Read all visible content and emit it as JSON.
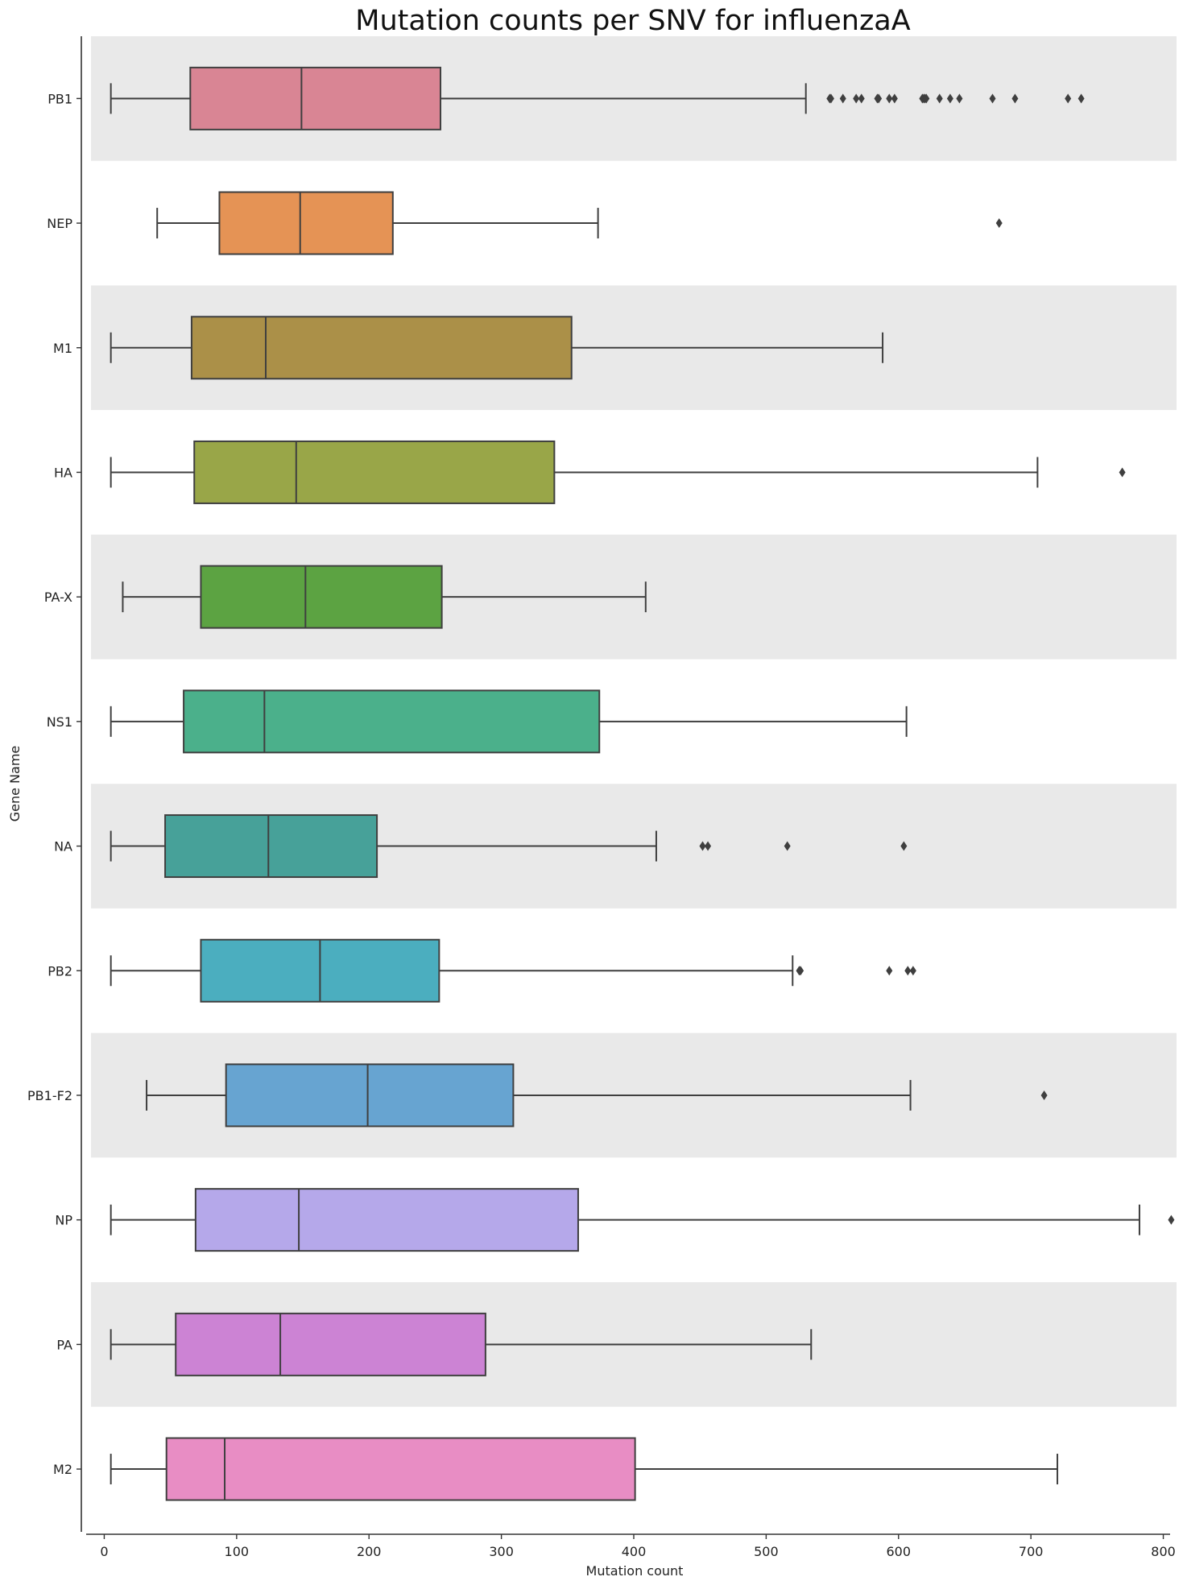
{
  "chart_data": {
    "type": "box",
    "orientation": "horizontal",
    "title": "Mutation counts per SNV for influenzaA",
    "xlabel": "Mutation count",
    "ylabel": "Gene Name",
    "xlim": [
      -10,
      810
    ],
    "xticks": [
      0,
      100,
      200,
      300,
      400,
      500,
      600,
      700,
      800
    ],
    "banding": "alternating grey row background",
    "grid": false,
    "categories": [
      {
        "name": "PB1",
        "color": "#d98594",
        "whisker_low": 5,
        "q1": 65,
        "median": 149,
        "q3": 254,
        "whisker_high": 530,
        "outliers": [
          548,
          549,
          558,
          568,
          572,
          584,
          585,
          593,
          597,
          618,
          619,
          620,
          621,
          631,
          639,
          646,
          671,
          688,
          728,
          738
        ]
      },
      {
        "name": "NEP",
        "color": "#e59355",
        "whisker_low": 40,
        "q1": 87,
        "median": 148,
        "q3": 218,
        "whisker_high": 373,
        "outliers": [
          676
        ]
      },
      {
        "name": "M1",
        "color": "#ab9048",
        "whisker_low": 5,
        "q1": 66,
        "median": 122,
        "q3": 353,
        "whisker_high": 588,
        "outliers": []
      },
      {
        "name": "HA",
        "color": "#99a648",
        "whisker_low": 5,
        "q1": 68,
        "median": 145,
        "q3": 340,
        "whisker_high": 705,
        "outliers": [
          769
        ]
      },
      {
        "name": "PA-X",
        "color": "#5ca342",
        "whisker_low": 14,
        "q1": 73,
        "median": 152,
        "q3": 255,
        "whisker_high": 409,
        "outliers": []
      },
      {
        "name": "NS1",
        "color": "#4bb08b",
        "whisker_low": 5,
        "q1": 60,
        "median": 121,
        "q3": 374,
        "whisker_high": 606,
        "outliers": []
      },
      {
        "name": "NA",
        "color": "#47a199",
        "whisker_low": 5,
        "q1": 46,
        "median": 124,
        "q3": 206,
        "whisker_high": 417,
        "outliers": [
          452,
          456,
          516,
          604
        ]
      },
      {
        "name": "PB2",
        "color": "#4baebf",
        "whisker_low": 5,
        "q1": 73,
        "median": 163,
        "q3": 253,
        "whisker_high": 520,
        "outliers": [
          525,
          526,
          593,
          607,
          611
        ]
      },
      {
        "name": "PB1-F2",
        "color": "#67a4d1",
        "whisker_low": 32,
        "q1": 92,
        "median": 199,
        "q3": 309,
        "whisker_high": 609,
        "outliers": [
          710
        ]
      },
      {
        "name": "NP",
        "color": "#b5a8ea",
        "whisker_low": 5,
        "q1": 69,
        "median": 147,
        "q3": 358,
        "whisker_high": 782,
        "outliers": [
          806
        ]
      },
      {
        "name": "PA",
        "color": "#cc83d4",
        "whisker_low": 5,
        "q1": 54,
        "median": 133,
        "q3": 288,
        "whisker_high": 534,
        "outliers": []
      },
      {
        "name": "M2",
        "color": "#e88dc4",
        "whisker_low": 5,
        "q1": 47,
        "median": 91,
        "q3": 401,
        "whisker_high": 720,
        "outliers": []
      }
    ]
  }
}
